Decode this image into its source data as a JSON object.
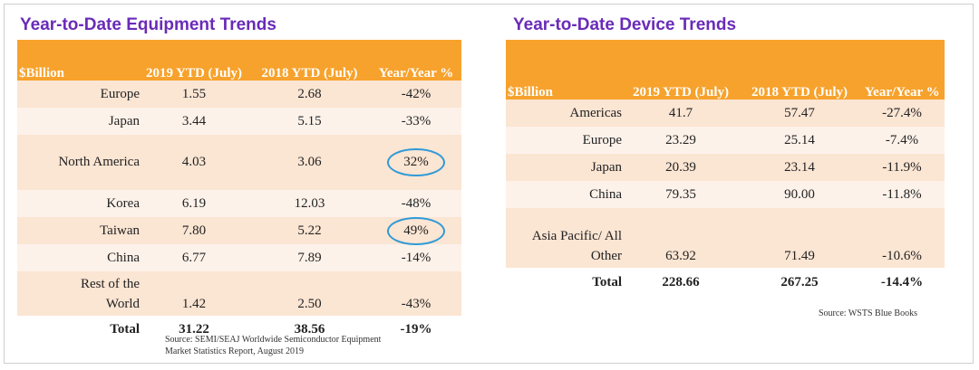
{
  "equipment": {
    "title": "Year-to-Date Equipment Trends",
    "headers": [
      "$Billion",
      "2019 YTD (July)",
      "2018 YTD (July)",
      "Year/Year %"
    ],
    "rows": [
      {
        "region": "Europe",
        "y2019": "1.55",
        "y2018": "2.68",
        "yoy": "-42%"
      },
      {
        "region": "Japan",
        "y2019": "3.44",
        "y2018": "5.15",
        "yoy": "-33%"
      },
      {
        "region": "North America",
        "y2019": "4.03",
        "y2018": "3.06",
        "yoy": "32%"
      },
      {
        "region": "Korea",
        "y2019": "6.19",
        "y2018": "12.03",
        "yoy": "-48%"
      },
      {
        "region": "Taiwan",
        "y2019": "7.80",
        "y2018": "5.22",
        "yoy": "49%"
      },
      {
        "region": "China",
        "y2019": "6.77",
        "y2018": "7.89",
        "yoy": "-14%"
      },
      {
        "region_line1": "Rest of the",
        "region_line2": "World",
        "y2019": "1.42",
        "y2018": "2.50",
        "yoy": "-43%"
      }
    ],
    "total": {
      "label": "Total",
      "y2019": "31.22",
      "y2018": "38.56",
      "yoy": "-19%"
    },
    "source_line1": "Source: SEMI/SEAJ Worldwide Semiconductor Equipment",
    "source_line2": "Market Statistics Report, August 2019"
  },
  "device": {
    "title": "Year-to-Date Device Trends",
    "headers": [
      "$Billion",
      "2019 YTD (July)",
      "2018 YTD (July)",
      "Year/Year %"
    ],
    "rows": [
      {
        "region": "Americas",
        "y2019": "41.7",
        "y2018": "57.47",
        "yoy": "-27.4%"
      },
      {
        "region": "Europe",
        "y2019": "23.29",
        "y2018": "25.14",
        "yoy": "-7.4%"
      },
      {
        "region": "Japan",
        "y2019": "20.39",
        "y2018": "23.14",
        "yoy": "-11.9%"
      },
      {
        "region": "China",
        "y2019": "79.35",
        "y2018": "90.00",
        "yoy": "-11.8%"
      },
      {
        "region_line1": "Asia Pacific/ All",
        "region_line2": "Other",
        "y2019": "63.92",
        "y2018": "71.49",
        "yoy": "-10.6%"
      }
    ],
    "total": {
      "label": "Total",
      "y2019": "228.66",
      "y2018": "267.25",
      "yoy": "-14.4%"
    },
    "source": "Source: WSTS Blue Books"
  },
  "colors": {
    "title": "#6a2bb8",
    "header": "#f7a22c",
    "row_dark": "#fbe5d3",
    "row_light": "#fdf2ea",
    "highlight_ring": "#2f9ad6"
  }
}
